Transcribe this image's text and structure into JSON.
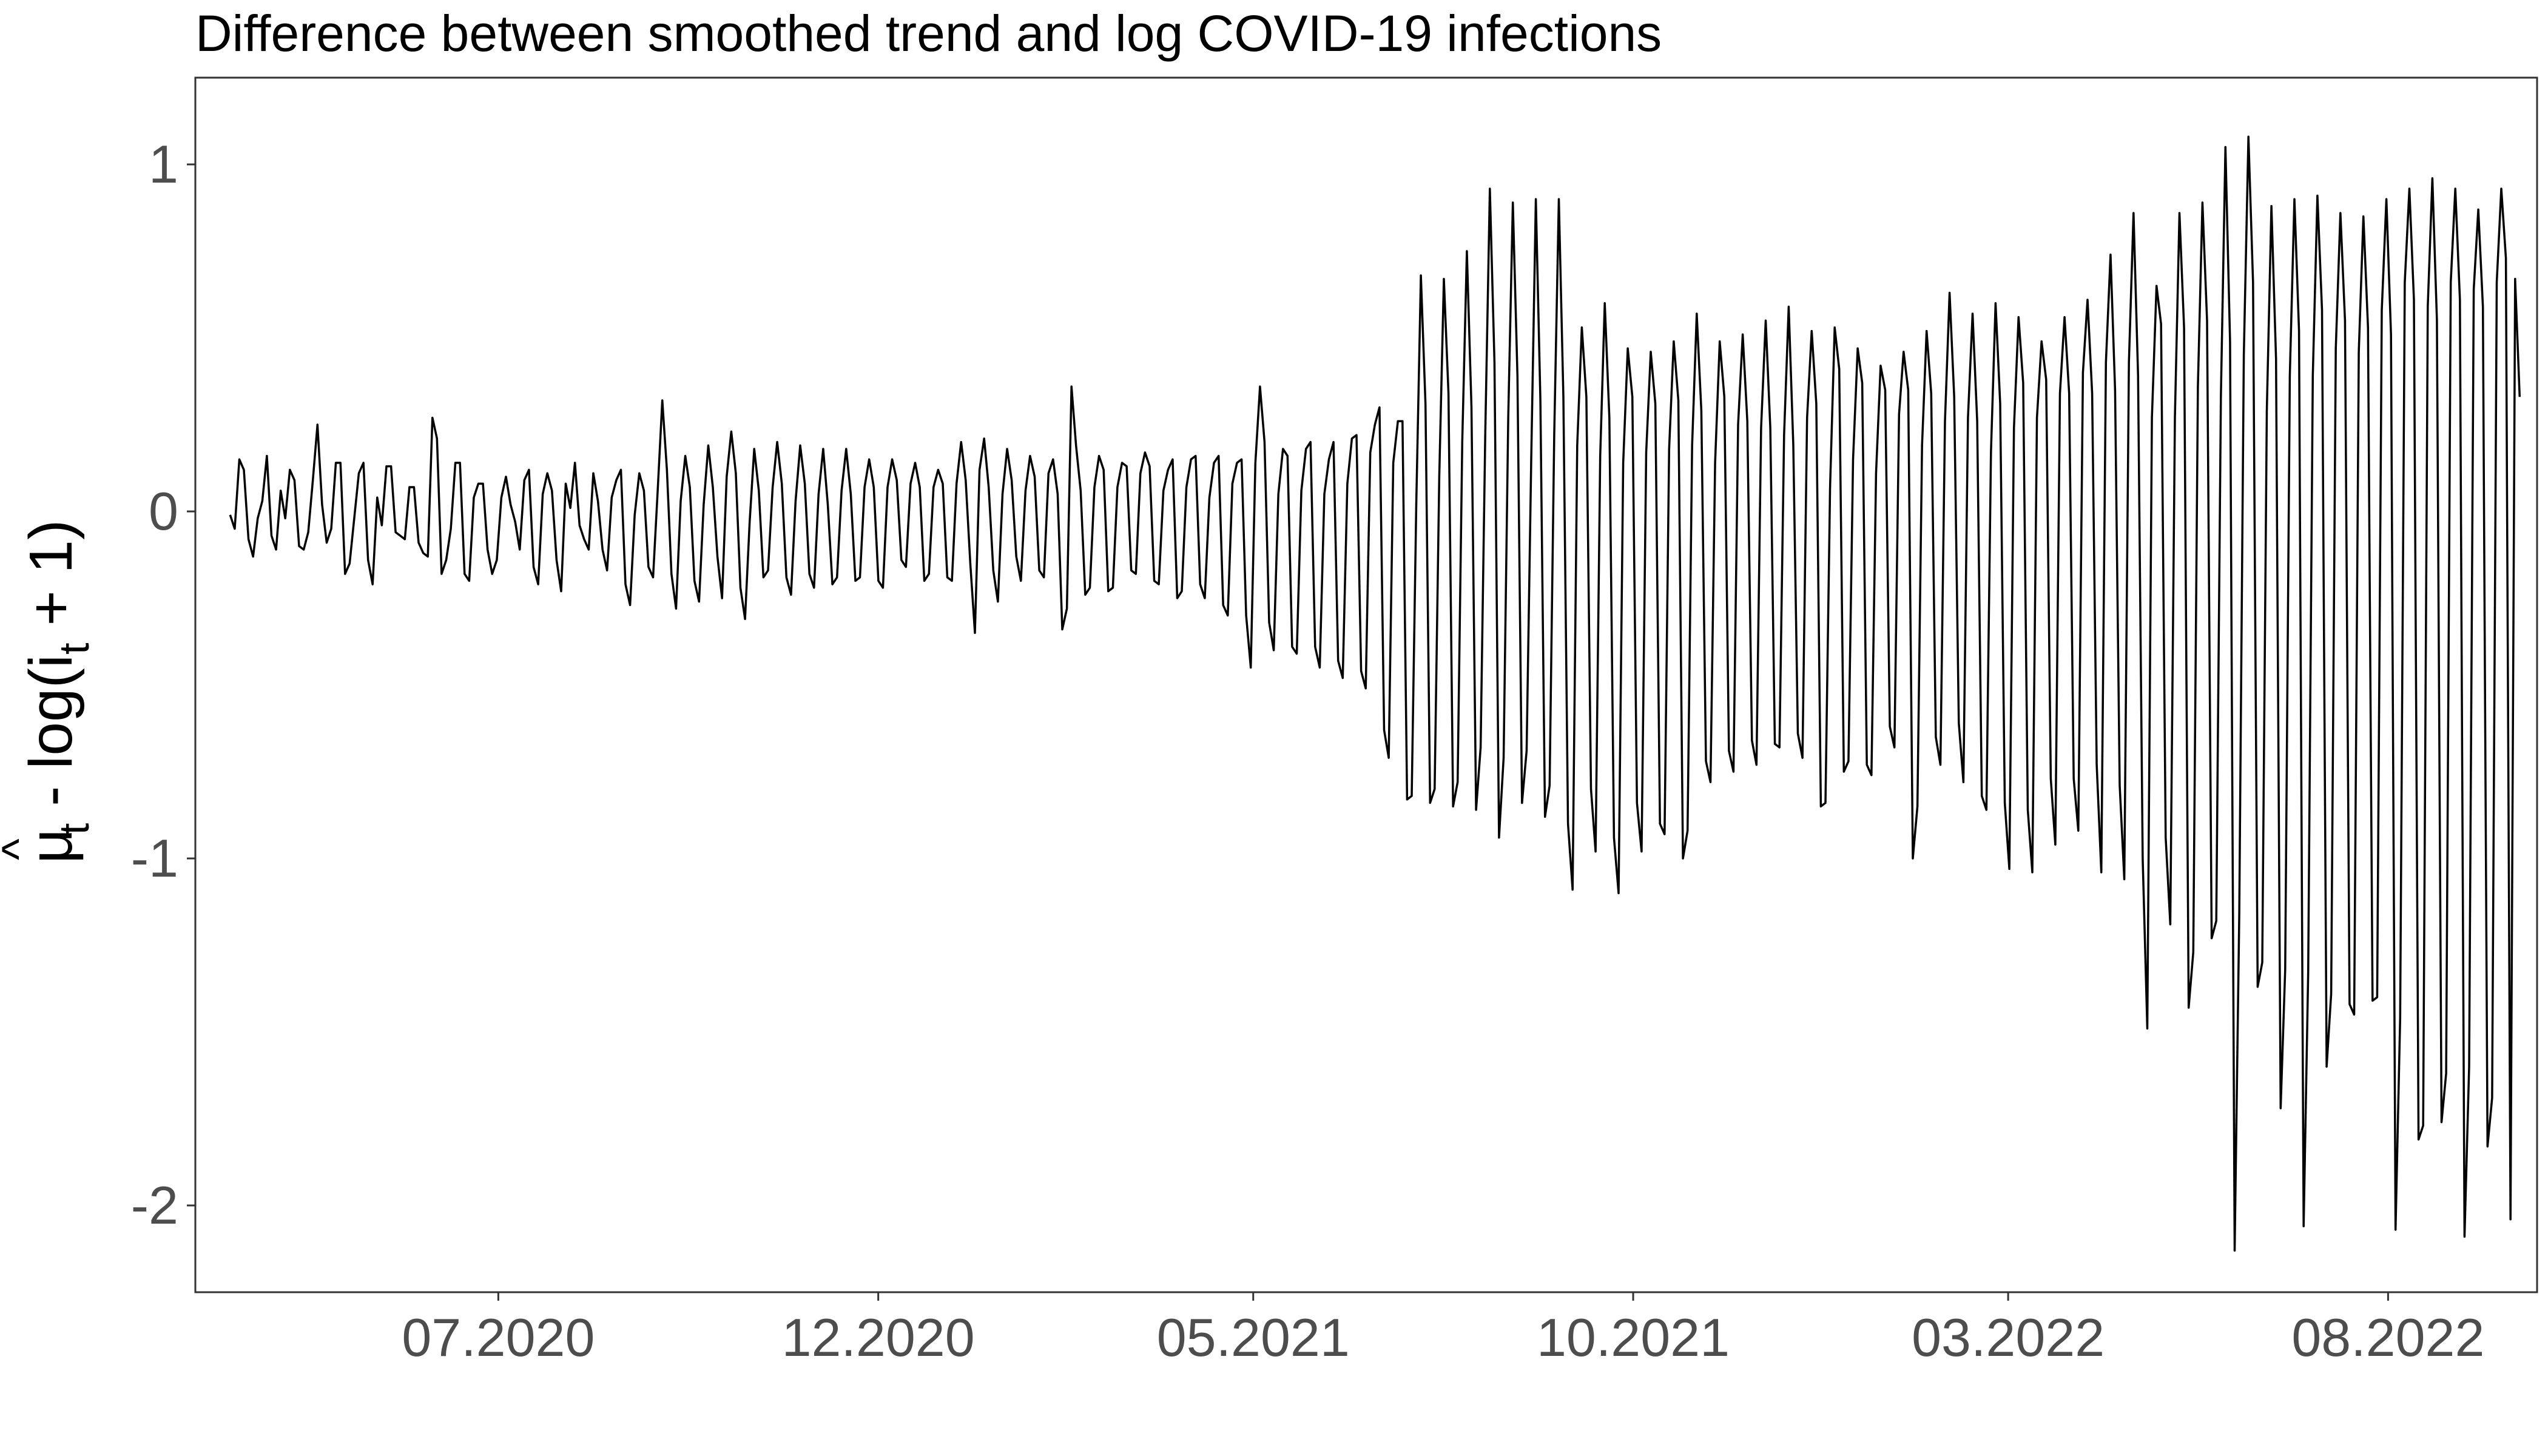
{
  "chart_data": {
    "type": "line",
    "title": "Difference between smoothed trend and log COVID-19 infections",
    "xlabel": "",
    "ylabel": {
      "base": "μ",
      "accent": "^",
      "sub1": "t",
      "mid": " - log(i",
      "sub2": "t",
      "end": " + 1)"
    },
    "x_range": [
      "2020-03-01",
      "2022-09-30"
    ],
    "ylim": [
      -2.25,
      1.25
    ],
    "y_ticks": [
      {
        "value": 1,
        "label": "1"
      },
      {
        "value": 0,
        "label": "0"
      },
      {
        "value": -1,
        "label": "-1"
      },
      {
        "value": -2,
        "label": "-2"
      }
    ],
    "x_ticks": [
      {
        "value": "2020-07-01",
        "label": "07.2020"
      },
      {
        "value": "2020-12-01",
        "label": "12.2020"
      },
      {
        "value": "2021-05-01",
        "label": "05.2021"
      },
      {
        "value": "2021-10-01",
        "label": "10.2021"
      },
      {
        "value": "2022-03-01",
        "label": "03.2022"
      },
      {
        "value": "2022-08-01",
        "label": "08.2022"
      }
    ],
    "grid": false,
    "series": [
      {
        "line_color": "#000000",
        "x_start": "2020-03-15",
        "x_step": "1 day",
        "values": [
          -0.01,
          -0.05,
          0.15,
          0.12,
          -0.08,
          -0.13,
          -0.02,
          0.03,
          0.16,
          -0.07,
          -0.11,
          0.06,
          -0.02,
          0.12,
          0.09,
          -0.1,
          -0.11,
          -0.06,
          0.09,
          0.25,
          0.02,
          -0.09,
          -0.05,
          0.14,
          0.14,
          -0.18,
          -0.15,
          -0.02,
          0.11,
          0.14,
          -0.14,
          -0.21,
          0.04,
          -0.04,
          0.13,
          0.13,
          -0.06,
          -0.07,
          -0.08,
          0.07,
          0.07,
          -0.09,
          -0.12,
          -0.13,
          0.27,
          0.21,
          -0.18,
          -0.14,
          -0.05,
          0.14,
          0.14,
          -0.18,
          -0.2,
          0.04,
          0.08,
          0.08,
          -0.11,
          -0.18,
          -0.14,
          0.04,
          0.1,
          0.02,
          -0.03,
          -0.11,
          0.09,
          0.12,
          -0.16,
          -0.21,
          0.05,
          0.11,
          0.06,
          -0.14,
          -0.23,
          0.08,
          0.01,
          0.14,
          -0.04,
          -0.08,
          -0.11,
          0.11,
          0.03,
          -0.11,
          -0.17,
          0.04,
          0.09,
          0.12,
          -0.21,
          -0.27,
          -0.01,
          0.11,
          0.06,
          -0.16,
          -0.19,
          0.06,
          0.32,
          0.12,
          -0.18,
          -0.28,
          0.03,
          0.16,
          0.07,
          -0.2,
          -0.26,
          0.02,
          0.19,
          0.07,
          -0.13,
          -0.25,
          0.1,
          0.23,
          0.11,
          -0.22,
          -0.31,
          -0.03,
          0.18,
          0.06,
          -0.19,
          -0.17,
          0.07,
          0.2,
          0.08,
          -0.19,
          -0.24,
          0.03,
          0.19,
          0.08,
          -0.18,
          -0.22,
          0.05,
          0.18,
          0.02,
          -0.21,
          -0.19,
          0.06,
          0.18,
          0.05,
          -0.2,
          -0.19,
          0.07,
          0.15,
          0.07,
          -0.2,
          -0.22,
          0.07,
          0.15,
          0.09,
          -0.14,
          -0.16,
          0.08,
          0.14,
          0.07,
          -0.2,
          -0.18,
          0.07,
          0.12,
          0.08,
          -0.19,
          -0.2,
          0.08,
          0.2,
          0.09,
          -0.15,
          -0.35,
          0.12,
          0.21,
          0.07,
          -0.17,
          -0.26,
          0.05,
          0.18,
          0.09,
          -0.13,
          -0.2,
          0.06,
          0.16,
          0.1,
          -0.17,
          -0.19,
          0.11,
          0.15,
          0.05,
          -0.34,
          -0.28,
          0.36,
          0.19,
          0.06,
          -0.24,
          -0.22,
          0.07,
          0.16,
          0.12,
          -0.23,
          -0.22,
          0.07,
          0.14,
          0.13,
          -0.17,
          -0.18,
          0.11,
          0.17,
          0.13,
          -0.2,
          -0.21,
          0.06,
          0.12,
          0.15,
          -0.25,
          -0.23,
          0.07,
          0.15,
          0.16,
          -0.21,
          -0.25,
          0.04,
          0.14,
          0.16,
          -0.27,
          -0.3,
          0.08,
          0.14,
          0.15,
          -0.3,
          -0.45,
          0.14,
          0.36,
          0.2,
          -0.32,
          -0.4,
          0.05,
          0.18,
          0.16,
          -0.39,
          -0.41,
          0.06,
          0.18,
          0.2,
          -0.39,
          -0.45,
          0.05,
          0.15,
          0.2,
          -0.43,
          -0.48,
          0.08,
          0.21,
          0.22,
          -0.46,
          -0.51,
          0.17,
          0.25,
          0.3,
          -0.63,
          -0.71,
          0.14,
          0.26,
          0.26,
          -0.83,
          -0.82,
          0.02,
          0.68,
          0.31,
          -0.84,
          -0.8,
          0.1,
          0.67,
          0.34,
          -0.85,
          -0.78,
          0.2,
          0.75,
          0.3,
          -0.86,
          -0.68,
          0.22,
          0.93,
          0.43,
          -0.94,
          -0.71,
          0.27,
          0.89,
          0.39,
          -0.84,
          -0.69,
          0.15,
          0.9,
          0.32,
          -0.88,
          -0.79,
          0.22,
          0.9,
          0.33,
          -0.9,
          -1.09,
          0.19,
          0.53,
          0.33,
          -0.8,
          -0.98,
          0.16,
          0.6,
          0.27,
          -0.94,
          -1.1,
          0.14,
          0.47,
          0.33,
          -0.84,
          -0.98,
          0.17,
          0.46,
          0.31,
          -0.9,
          -0.93,
          0.18,
          0.49,
          0.32,
          -1.0,
          -0.92,
          0.19,
          0.57,
          0.29,
          -0.72,
          -0.78,
          0.14,
          0.49,
          0.33,
          -0.69,
          -0.75,
          0.25,
          0.51,
          0.26,
          -0.66,
          -0.73,
          0.24,
          0.55,
          0.24,
          -0.67,
          -0.68,
          0.22,
          0.59,
          0.19,
          -0.64,
          -0.71,
          0.27,
          0.52,
          0.31,
          -0.85,
          -0.84,
          0.07,
          0.53,
          0.41,
          -0.75,
          -0.72,
          0.15,
          0.47,
          0.37,
          -0.73,
          -0.76,
          0.11,
          0.42,
          0.35,
          -0.62,
          -0.68,
          0.28,
          0.46,
          0.35,
          -1.0,
          -0.85,
          0.19,
          0.52,
          0.34,
          -0.65,
          -0.73,
          0.26,
          0.63,
          0.33,
          -0.61,
          -0.78,
          0.27,
          0.57,
          0.26,
          -0.82,
          -0.86,
          0.17,
          0.6,
          0.31,
          -0.84,
          -1.03,
          0.24,
          0.56,
          0.37,
          -0.86,
          -1.04,
          0.27,
          0.49,
          0.38,
          -0.77,
          -0.96,
          0.34,
          0.56,
          0.34,
          -0.77,
          -0.92,
          0.4,
          0.61,
          0.34,
          -0.73,
          -1.04,
          0.43,
          0.74,
          0.35,
          -0.79,
          -1.06,
          0.43,
          0.86,
          0.39,
          -1.0,
          -1.49,
          0.27,
          0.65,
          0.54,
          -0.94,
          -1.19,
          0.27,
          0.86,
          0.53,
          -1.43,
          -1.27,
          0.36,
          0.89,
          0.55,
          -1.23,
          -1.18,
          0.33,
          1.05,
          0.49,
          -2.13,
          -1.16,
          0.45,
          1.08,
          0.66,
          -1.37,
          -1.3,
          0.29,
          0.88,
          0.44,
          -1.72,
          -1.32,
          0.39,
          0.9,
          0.52,
          -2.06,
          -1.33,
          0.39,
          0.91,
          0.58,
          -1.6,
          -1.39,
          0.47,
          0.86,
          0.55,
          -1.42,
          -1.45,
          0.46,
          0.85,
          0.53,
          -1.41,
          -1.4,
          0.58,
          0.9,
          0.51,
          -2.07,
          -1.46,
          0.66,
          0.93,
          0.61,
          -1.81,
          -1.77,
          0.59,
          0.96,
          0.55,
          -1.76,
          -1.62,
          0.66,
          0.93,
          0.61,
          -2.09,
          -1.6,
          0.64,
          0.87,
          0.59,
          -1.83,
          -1.69,
          0.66,
          0.93,
          0.73,
          -2.04,
          0.67,
          0.33
        ]
      }
    ]
  }
}
